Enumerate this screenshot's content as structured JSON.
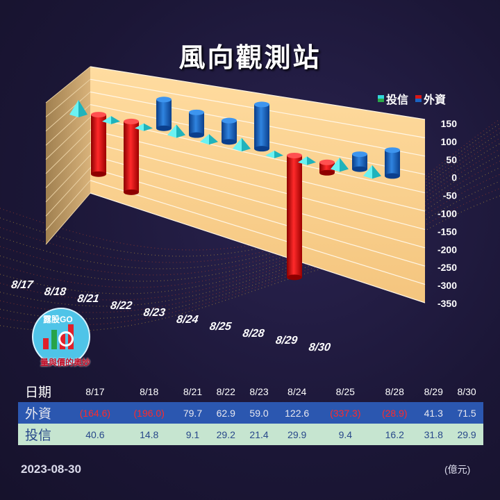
{
  "title": "風向觀測站",
  "legend": [
    {
      "name": "投信",
      "color": "#32d7dc"
    },
    {
      "name": "外資",
      "color": "#d81616"
    }
  ],
  "chart_data": {
    "type": "bar",
    "categories": [
      "8/17",
      "8/18",
      "8/21",
      "8/22",
      "8/23",
      "8/24",
      "8/25",
      "8/28",
      "8/29",
      "8/30"
    ],
    "series": [
      {
        "name": "外資",
        "values": [
          -164.6,
          -196.0,
          79.7,
          62.9,
          59.0,
          122.6,
          -337.3,
          -28.9,
          41.3,
          71.5
        ],
        "color_pos": "#1a64c2",
        "color_neg": "#e01818"
      },
      {
        "name": "投信",
        "values": [
          40.6,
          14.8,
          9.1,
          29.2,
          21.4,
          29.9,
          9.4,
          16.2,
          31.8,
          29.9
        ],
        "color": "#34dbe0"
      }
    ],
    "ylim": [
      -350,
      150
    ],
    "yticks": [
      150,
      100,
      50,
      0,
      -50,
      -100,
      -150,
      -200,
      -250,
      -300,
      -350
    ],
    "grid": true,
    "legend_position": "top-right"
  },
  "logo": {
    "top": "露股GO",
    "bottom": "量與價的奧妙"
  },
  "table": {
    "row_labels": {
      "date": "日期",
      "foreign": "外資",
      "trust": "投信"
    },
    "dates": [
      "8/17",
      "8/18",
      "8/21",
      "8/22",
      "8/23",
      "8/24",
      "8/25",
      "8/28",
      "8/29",
      "8/30"
    ],
    "foreign": [
      "(164.6)",
      "(196.0)",
      "79.7",
      "62.9",
      "59.0",
      "122.6",
      "(337.3)",
      "(28.9)",
      "41.3",
      "71.5"
    ],
    "trust": [
      "40.6",
      "14.8",
      "9.1",
      "29.2",
      "21.4",
      "29.9",
      "9.4",
      "16.2",
      "31.8",
      "29.9"
    ]
  },
  "date_stamp": "2023-08-30",
  "unit": "(億元)"
}
